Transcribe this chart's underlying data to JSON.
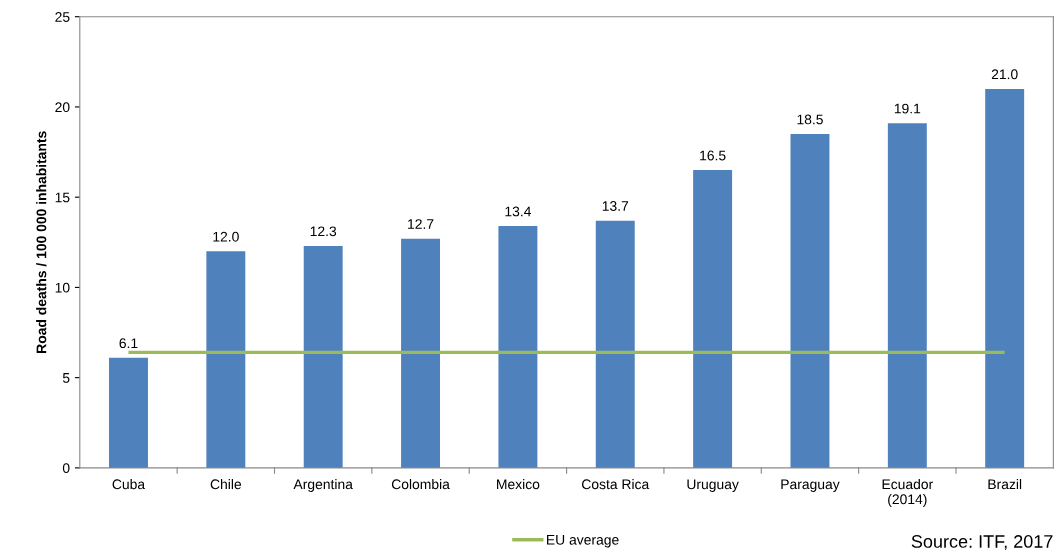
{
  "chart_data": {
    "type": "bar",
    "ylabel": "Road deaths / 100 000 inhabitants",
    "categories": [
      "Cuba",
      "Chile",
      "Argentina",
      "Colombia",
      "Mexico",
      "Costa Rica",
      "Uruguay",
      "Paraguay",
      "Ecuador\n(2014)",
      "Brazil"
    ],
    "series": [
      {
        "color": "#4f81bd",
        "values": [
          6.1,
          12.0,
          12.3,
          12.7,
          13.4,
          13.7,
          16.5,
          18.5,
          19.1,
          21.0
        ],
        "value_labels": [
          "6.1",
          "12.0",
          "12.3",
          "12.7",
          "13.4",
          "13.7",
          "16.5",
          "18.5",
          "19.1",
          "21.0"
        ]
      }
    ],
    "ylim": [
      0,
      25
    ],
    "yticks": [
      0,
      5,
      10,
      15,
      20,
      25
    ],
    "ref_lines": [
      {
        "axis": "y",
        "value": 6.4,
        "label": "EU average",
        "color": "#9bbb59"
      }
    ],
    "legend": "bottom",
    "grid": false,
    "annotations": [
      "Source: ITF, 2017"
    ]
  }
}
